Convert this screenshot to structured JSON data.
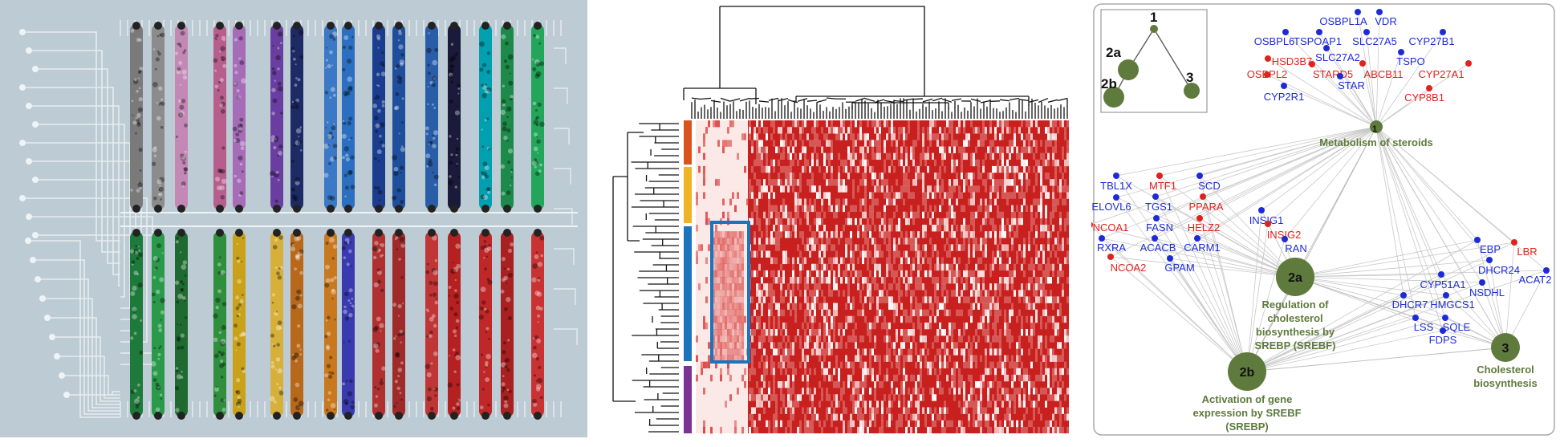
{
  "colors": {
    "background_panel_a": "#bccbd4",
    "heatmap_red": "#c8201e",
    "highlight_box": "#1b75bb",
    "hub_green": "#5e7a3c",
    "gene_blue": "#1d2bd6",
    "gene_red": "#e0221e",
    "group_colors": [
      "#d9531e",
      "#f0b323",
      "#1b75bb",
      "#7b3294"
    ]
  },
  "panel_a": {
    "icons": [
      "circuit-board-icon",
      "tissue-slide-icon"
    ]
  },
  "panel_b": {
    "icons": [
      "dendrogram-icon",
      "heatmap-icon"
    ]
  },
  "panel_c": {
    "inset_tree": {
      "labels": [
        "1",
        "2a",
        "2b",
        "3"
      ]
    },
    "hubs": [
      {
        "id": "1",
        "label_lines": [
          "Metabolism of steroids"
        ]
      },
      {
        "id": "2a",
        "label_lines": [
          "Regulation of",
          "cholesterol",
          "biosynthesis by",
          "SREBP (SREBF)"
        ]
      },
      {
        "id": "2b",
        "label_lines": [
          "Activation of gene",
          "expression by SREBF",
          "(SREBP)"
        ]
      },
      {
        "id": "3",
        "label_lines": [
          "Cholesterol",
          "biosynthesis"
        ]
      }
    ],
    "genes": [
      {
        "name": "OSBPL1A",
        "color": "blue"
      },
      {
        "name": "VDR",
        "color": "blue"
      },
      {
        "name": "OSBPL6",
        "color": "blue"
      },
      {
        "name": "TSPOAP1",
        "color": "blue"
      },
      {
        "name": "SLC27A5",
        "color": "blue"
      },
      {
        "name": "CYP27B1",
        "color": "blue"
      },
      {
        "name": "HSD3B7",
        "color": "red"
      },
      {
        "name": "SLC27A2",
        "color": "blue"
      },
      {
        "name": "TSPO",
        "color": "blue"
      },
      {
        "name": "OSBPL2",
        "color": "red"
      },
      {
        "name": "STARD5",
        "color": "red"
      },
      {
        "name": "ABCB11",
        "color": "red"
      },
      {
        "name": "CYP27A1",
        "color": "red"
      },
      {
        "name": "STAR",
        "color": "blue"
      },
      {
        "name": "CYP2R1",
        "color": "blue"
      },
      {
        "name": "CYP8B1",
        "color": "red"
      },
      {
        "name": "TBL1X",
        "color": "blue"
      },
      {
        "name": "MTF1",
        "color": "red"
      },
      {
        "name": "SCD",
        "color": "blue"
      },
      {
        "name": "ELOVL6",
        "color": "blue"
      },
      {
        "name": "TGS1",
        "color": "blue"
      },
      {
        "name": "PPARA",
        "color": "red"
      },
      {
        "name": "NCOA1",
        "color": "red"
      },
      {
        "name": "FASN",
        "color": "blue"
      },
      {
        "name": "HELZ2",
        "color": "red"
      },
      {
        "name": "RXRA",
        "color": "blue"
      },
      {
        "name": "ACACB",
        "color": "blue"
      },
      {
        "name": "CARM1",
        "color": "blue"
      },
      {
        "name": "NCOA2",
        "color": "red"
      },
      {
        "name": "GPAM",
        "color": "blue"
      },
      {
        "name": "INSIG1",
        "color": "blue"
      },
      {
        "name": "INSIG2",
        "color": "red"
      },
      {
        "name": "RAN",
        "color": "blue"
      },
      {
        "name": "EBP",
        "color": "blue"
      },
      {
        "name": "LBR",
        "color": "red"
      },
      {
        "name": "DHCR24",
        "color": "blue"
      },
      {
        "name": "ACAT2",
        "color": "blue"
      },
      {
        "name": "CYP51A1",
        "color": "blue"
      },
      {
        "name": "NSDHL",
        "color": "blue"
      },
      {
        "name": "DHCR7",
        "color": "blue"
      },
      {
        "name": "HMGCS1",
        "color": "blue"
      },
      {
        "name": "LSS",
        "color": "blue"
      },
      {
        "name": "SQLE",
        "color": "blue"
      },
      {
        "name": "FDPS",
        "color": "blue"
      }
    ]
  }
}
